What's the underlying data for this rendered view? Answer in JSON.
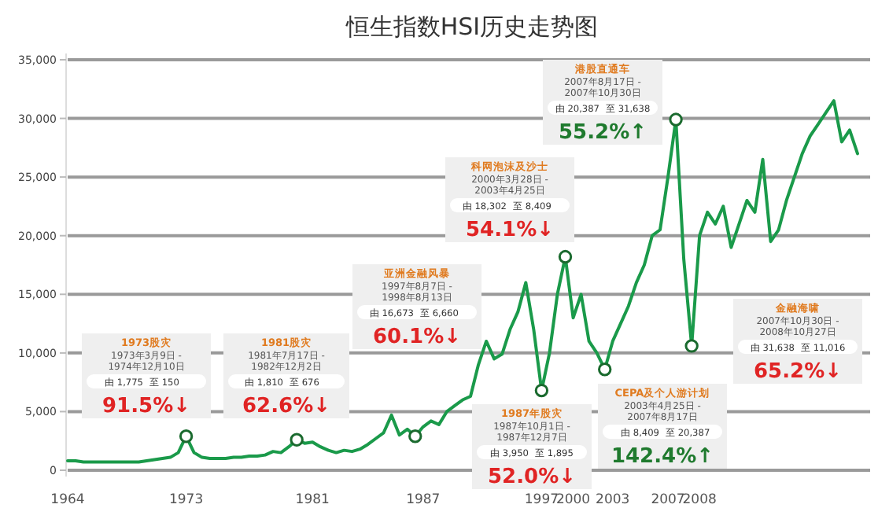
{
  "chart_data": {
    "type": "line",
    "title": "恒生指数HSI历史走势图",
    "categories": [
      "1964",
      null,
      null,
      null,
      null,
      null,
      null,
      null,
      null,
      null,
      null,
      null,
      null,
      null,
      null,
      "1973",
      null,
      null,
      null,
      null,
      null,
      null,
      null,
      null,
      null,
      null,
      null,
      null,
      null,
      null,
      null,
      "1981",
      null,
      null,
      null,
      null,
      null,
      null,
      null,
      null,
      null,
      null,
      null,
      null,
      null,
      "1987",
      null,
      null,
      null,
      null,
      null,
      null,
      null,
      null,
      null,
      null,
      null,
      null,
      null,
      null,
      "1997",
      null,
      null,
      null,
      "2000",
      null,
      null,
      null,
      null,
      "2003",
      null,
      null,
      null,
      null,
      null,
      null,
      "2007",
      null,
      null,
      null,
      "2008",
      null,
      null,
      null,
      null,
      null,
      null,
      null,
      null,
      null,
      null,
      null,
      null,
      null,
      null,
      null,
      null,
      null,
      null,
      null,
      null
    ],
    "series": [
      {
        "type": "line",
        "color": "#1a9a4a",
        "values": [
          800,
          800,
          700,
          700,
          700,
          700,
          700,
          700,
          700,
          700,
          800,
          900,
          1000,
          1100,
          1500,
          2900,
          1500,
          1100,
          1000,
          1000,
          1000,
          1100,
          1100,
          1200,
          1200,
          1300,
          1600,
          1500,
          2000,
          2600,
          2300,
          2400,
          2000,
          1700,
          1500,
          1700,
          1600,
          1800,
          2200,
          2700,
          3200,
          4700,
          3000,
          3500,
          2900,
          3700,
          4200,
          3900,
          5000,
          5500,
          6000,
          6300,
          9000,
          11000,
          9500,
          9900,
          12000,
          13500,
          16000,
          12000,
          6800,
          10000,
          15000,
          18200,
          13000,
          15000,
          11000,
          10000,
          8600,
          11000,
          12500,
          14000,
          16000,
          17500,
          20000,
          20500,
          25000,
          29900,
          18000,
          10600,
          20000,
          22000,
          21000,
          22500,
          19000,
          21000,
          23000,
          22000,
          26500,
          19500,
          20500,
          23000,
          25000,
          27000,
          28500,
          29500,
          30500,
          31500,
          28000,
          29000,
          27000
        ]
      },
      {
        "type": "scatter",
        "marker": "circle",
        "color": "#1a6a2e",
        "values": [
          null,
          null,
          null,
          null,
          null,
          null,
          null,
          null,
          null,
          null,
          null,
          null,
          null,
          null,
          null,
          2900,
          null,
          null,
          null,
          null,
          null,
          null,
          null,
          null,
          null,
          null,
          null,
          null,
          null,
          2600,
          null,
          null,
          null,
          null,
          null,
          null,
          null,
          null,
          null,
          null,
          null,
          null,
          null,
          null,
          2900,
          null,
          null,
          null,
          null,
          null,
          null,
          null,
          null,
          null,
          null,
          null,
          null,
          null,
          null,
          null,
          6800,
          null,
          null,
          18200,
          null,
          null,
          null,
          null,
          8600,
          null,
          null,
          null,
          null,
          null,
          null,
          null,
          null,
          29900,
          null,
          10600,
          null,
          null,
          null,
          null,
          null,
          null,
          null,
          null,
          null,
          null,
          null,
          null,
          null,
          null,
          null,
          null,
          null,
          null,
          null,
          null,
          null
        ]
      }
    ],
    "ylim": [
      0,
      35000
    ],
    "yticks": [
      0,
      {
        "value": 5000,
        "label": "5,000"
      },
      {
        "value": 10000,
        "label": "10,000"
      },
      {
        "value": 15000,
        "label": "15,000"
      },
      {
        "value": 20000,
        "label": "20,000"
      },
      {
        "value": 25000,
        "label": "25,000"
      },
      {
        "value": 30000,
        "label": "30,000"
      },
      {
        "value": 35000,
        "label": "35,000"
      }
    ],
    "grid": "y",
    "annotations": [
      "1973股灾",
      "1973年3月9日 - 1974年12月10日",
      "由 1,775",
      "至 150",
      "91.5%↓",
      "1981股灾",
      "1981年7月17日 - 1982年12月2日",
      "由 1,810",
      "至 676",
      "62.6%↓",
      "亚洲金融风暴",
      "1997年8月7日 - 1998年8月13日",
      "由 16,673",
      "至 6,660",
      "60.1%↓",
      "科网泡沫及沙士",
      "2000年3月28日 - 2003年4月25日",
      "由 18,302",
      "至 8,409",
      "54.1%↓",
      "港股直通车",
      "2007年8月17日 - 2007年10月30日",
      "由 20,387",
      "至 31,638",
      "55.2%↑",
      "1987年股灾",
      "1987年10月1日 - 1987年12月7日",
      "由 3,950",
      "至 1,895",
      "52.0%↓",
      "CEPA及个人游计划",
      "2003年4月25日 - 2007年8月17日",
      "由 8,409",
      "至 20,387",
      "142.4%↑",
      "金融海啸",
      "2007年10月30日 - 2008年10月27日",
      "由 31,638",
      "至 11,016",
      "65.2%↓"
    ]
  }
}
